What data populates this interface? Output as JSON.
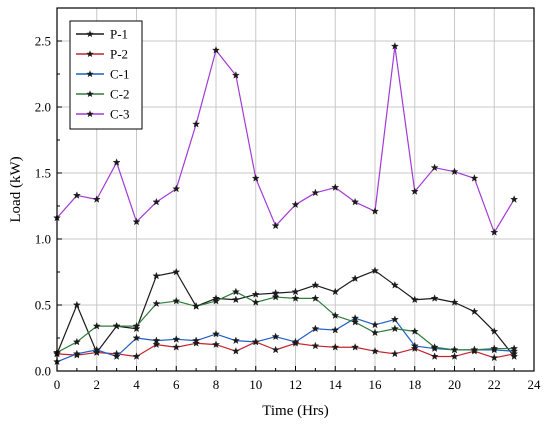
{
  "chart_data": {
    "type": "line",
    "title": "",
    "xlabel": "Time (Hrs)",
    "ylabel": "Load (kW)",
    "xlim": [
      0,
      24
    ],
    "ylim": [
      0,
      2.75
    ],
    "xticks": [
      0,
      2,
      4,
      6,
      8,
      10,
      12,
      14,
      16,
      18,
      20,
      22,
      24
    ],
    "yticks": [
      0.0,
      0.5,
      1.0,
      1.5,
      2.0,
      2.5
    ],
    "ytick_labels": [
      "0.0",
      "0.5",
      "1.0",
      "1.5",
      "2.0",
      "2.5"
    ],
    "grid": true,
    "legend_position": "top-left",
    "x": [
      0,
      1,
      2,
      3,
      4,
      5,
      6,
      7,
      8,
      9,
      10,
      11,
      12,
      13,
      14,
      15,
      16,
      17,
      18,
      19,
      20,
      21,
      22,
      23
    ],
    "series": [
      {
        "name": "P-1",
        "color": "#1a1a1a",
        "marker": "star",
        "values": [
          0.13,
          0.5,
          0.14,
          0.34,
          0.32,
          0.72,
          0.75,
          0.49,
          0.55,
          0.54,
          0.58,
          0.59,
          0.6,
          0.65,
          0.6,
          0.7,
          0.76,
          0.65,
          0.54,
          0.55,
          0.52,
          0.45,
          0.3,
          0.11
        ]
      },
      {
        "name": "P-2",
        "color": "#c0262d",
        "marker": "star",
        "values": [
          0.13,
          0.12,
          0.14,
          0.13,
          0.11,
          0.2,
          0.18,
          0.21,
          0.2,
          0.15,
          0.22,
          0.16,
          0.21,
          0.19,
          0.18,
          0.18,
          0.15,
          0.13,
          0.17,
          0.11,
          0.11,
          0.15,
          0.1,
          0.13
        ]
      },
      {
        "name": "C-1",
        "color": "#1f5fc4",
        "marker": "star",
        "values": [
          0.07,
          0.13,
          0.16,
          0.11,
          0.25,
          0.23,
          0.24,
          0.23,
          0.28,
          0.23,
          0.22,
          0.26,
          0.22,
          0.32,
          0.31,
          0.4,
          0.35,
          0.39,
          0.19,
          0.17,
          0.16,
          0.16,
          0.16,
          0.15
        ]
      },
      {
        "name": "C-2",
        "color": "#2f7d3a",
        "marker": "star",
        "values": [
          0.14,
          0.22,
          0.34,
          0.34,
          0.34,
          0.51,
          0.53,
          0.49,
          0.53,
          0.6,
          0.52,
          0.56,
          0.55,
          0.55,
          0.42,
          0.37,
          0.29,
          0.32,
          0.3,
          0.18,
          0.16,
          0.16,
          0.17,
          0.17
        ]
      },
      {
        "name": "C-3",
        "color": "#a23ad6",
        "marker": "star",
        "values": [
          1.16,
          1.33,
          1.3,
          1.58,
          1.13,
          1.28,
          1.38,
          1.87,
          2.43,
          2.24,
          1.46,
          1.1,
          1.26,
          1.35,
          1.39,
          1.28,
          1.21,
          2.46,
          1.36,
          1.54,
          1.51,
          1.46,
          1.05,
          1.3
        ]
      }
    ]
  }
}
